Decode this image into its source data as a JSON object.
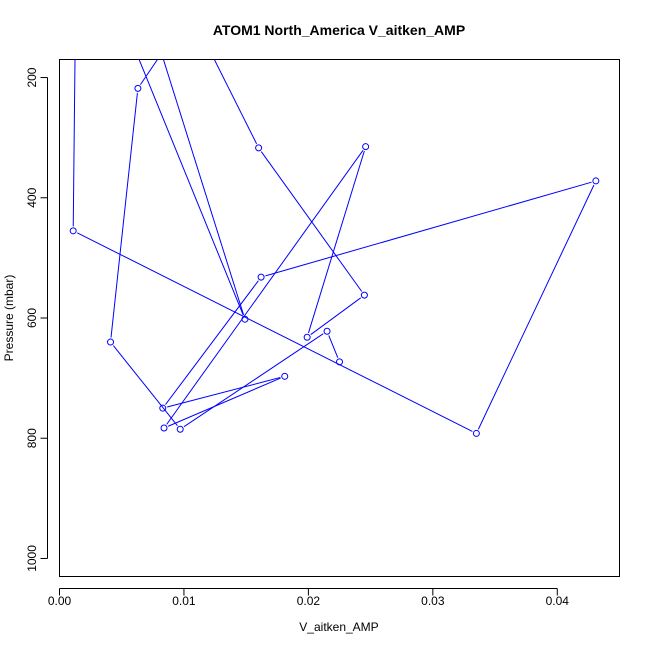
{
  "chart_data": {
    "type": "line",
    "title": "ATOM1 North_America V_aitken_AMP",
    "xlabel": "V_aitken_AMP",
    "ylabel": "Pressure (mbar)",
    "xlim": [
      0.0,
      0.045
    ],
    "ylim": [
      1030,
      170
    ],
    "y_inverted": true,
    "x_ticks": [
      0.0,
      0.01,
      0.02,
      0.03,
      0.04
    ],
    "x_tick_labels": [
      "0.00",
      "0.01",
      "0.02",
      "0.03",
      "0.04"
    ],
    "y_ticks": [
      200,
      400,
      600,
      800,
      1000
    ],
    "y_tick_labels": [
      "200",
      "400",
      "600",
      "800",
      "1000"
    ],
    "grid": false,
    "series": [
      {
        "color": "#0000ff",
        "marker": "open-circle",
        "points": [
          {
            "x": 0.00125,
            "y": 160,
            "marker": false
          },
          {
            "x": 0.0011,
            "y": 455,
            "marker": true
          },
          {
            "x": 0.0335,
            "y": 792,
            "marker": true
          },
          {
            "x": 0.0431,
            "y": 372,
            "marker": true
          },
          {
            "x": 0.0162,
            "y": 532,
            "marker": true
          },
          {
            "x": 0.0083,
            "y": 750,
            "marker": true
          },
          {
            "x": 0.0181,
            "y": 697,
            "marker": true
          },
          {
            "x": 0.0084,
            "y": 783,
            "marker": true
          },
          {
            "x": 0.0246,
            "y": 315,
            "marker": true
          },
          {
            "x": 0.0199,
            "y": 632,
            "marker": true
          },
          {
            "x": 0.0245,
            "y": 562,
            "marker": true
          },
          {
            "x": 0.016,
            "y": 317,
            "marker": true
          },
          {
            "x": 0.0122,
            "y": 160,
            "marker": false
          },
          {
            "x": 0.0062,
            "y": 160,
            "marker": false
          },
          {
            "x": 0.0149,
            "y": 602,
            "marker": true
          },
          {
            "x": 0.0082,
            "y": 160,
            "marker": false
          },
          {
            "x": 0.0063,
            "y": 218,
            "marker": true
          },
          {
            "x": 0.0041,
            "y": 640,
            "marker": true
          },
          {
            "x": 0.0097,
            "y": 785,
            "marker": true
          },
          {
            "x": 0.0215,
            "y": 622,
            "marker": true
          },
          {
            "x": 0.0225,
            "y": 673,
            "marker": true
          }
        ]
      }
    ]
  }
}
